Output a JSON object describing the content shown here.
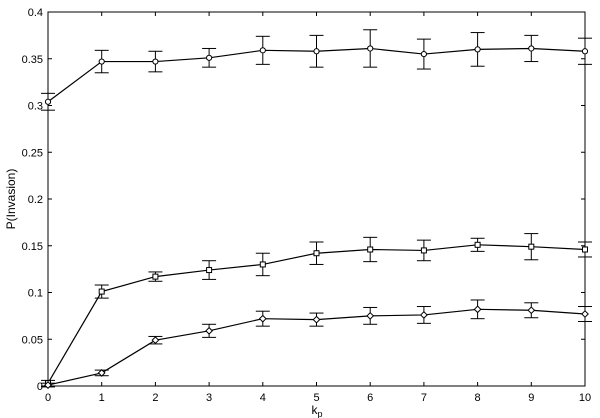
{
  "chart_data": {
    "type": "line",
    "xlabel": "k_p",
    "ylabel": "P(Invasion)",
    "xlim": [
      0,
      10
    ],
    "ylim": [
      0,
      0.4
    ],
    "xticks": [
      0,
      1,
      2,
      3,
      4,
      5,
      6,
      7,
      8,
      9,
      10
    ],
    "yticks": [
      0,
      0.05,
      0.1,
      0.15,
      0.2,
      0.25,
      0.3,
      0.35,
      0.4
    ],
    "ytick_labels": [
      "0",
      "0.05",
      "0.1",
      "0.15",
      "0.2",
      "0.25",
      "0.3",
      "0.35",
      "0.4"
    ],
    "grid": false,
    "legend": "none",
    "x": [
      0,
      1,
      2,
      3,
      4,
      5,
      6,
      7,
      8,
      9,
      10
    ],
    "series": [
      {
        "marker": "circle",
        "values": [
          0.304,
          0.347,
          0.347,
          0.351,
          0.359,
          0.358,
          0.361,
          0.355,
          0.36,
          0.361,
          0.358
        ],
        "errors": [
          0.009,
          0.012,
          0.011,
          0.01,
          0.015,
          0.017,
          0.02,
          0.016,
          0.018,
          0.014,
          0.014
        ]
      },
      {
        "marker": "square",
        "values": [
          0.003,
          0.101,
          0.117,
          0.124,
          0.13,
          0.142,
          0.146,
          0.145,
          0.151,
          0.149,
          0.146
        ],
        "errors": [
          0.003,
          0.007,
          0.005,
          0.01,
          0.012,
          0.012,
          0.013,
          0.011,
          0.007,
          0.014,
          0.008
        ]
      },
      {
        "marker": "diamond",
        "values": [
          0.001,
          0.014,
          0.049,
          0.059,
          0.072,
          0.071,
          0.075,
          0.076,
          0.082,
          0.081,
          0.077
        ],
        "errors": [
          0.002,
          0.003,
          0.004,
          0.007,
          0.008,
          0.007,
          0.009,
          0.009,
          0.01,
          0.008,
          0.008
        ]
      }
    ]
  }
}
